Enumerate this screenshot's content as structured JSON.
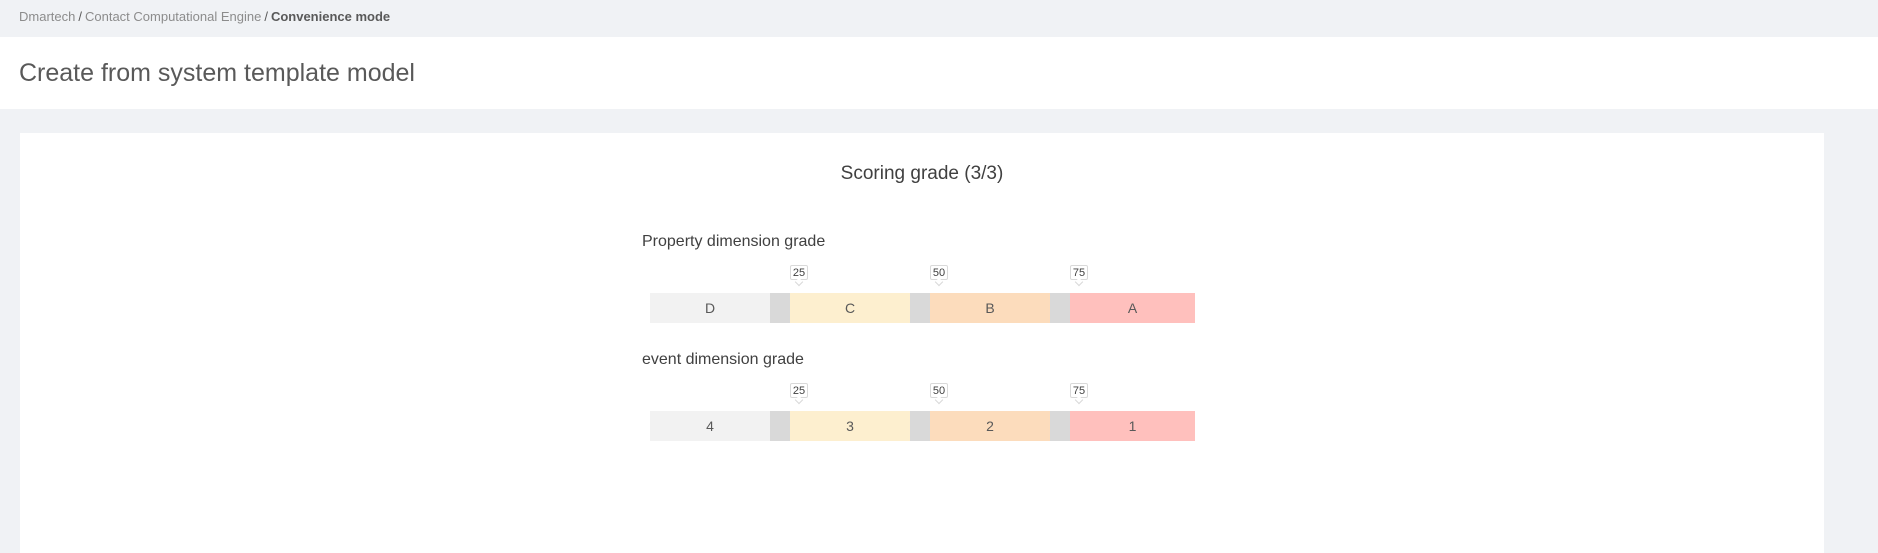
{
  "breadcrumb": {
    "items": [
      "Dmartech",
      "Contact Computational Engine"
    ],
    "separator": "/",
    "current": "Convenience mode"
  },
  "header": {
    "title": "Create from system template model"
  },
  "step": {
    "title": "Scoring grade (3/3)"
  },
  "grades": [
    {
      "label": "Property dimension grade",
      "thresholds": [
        "25",
        "50",
        "75"
      ],
      "segments": [
        "D",
        "C",
        "B",
        "A"
      ]
    },
    {
      "label": "event dimension grade",
      "thresholds": [
        "25",
        "50",
        "75"
      ],
      "segments": [
        "4",
        "3",
        "2",
        "1"
      ]
    }
  ],
  "colors": {
    "segment_low": "#f2f2f2",
    "segment_mid_low": "#fdefcf",
    "segment_mid_high": "#fcdcbc",
    "segment_high": "#ffc0bd",
    "handle": "#d9d9d9"
  }
}
